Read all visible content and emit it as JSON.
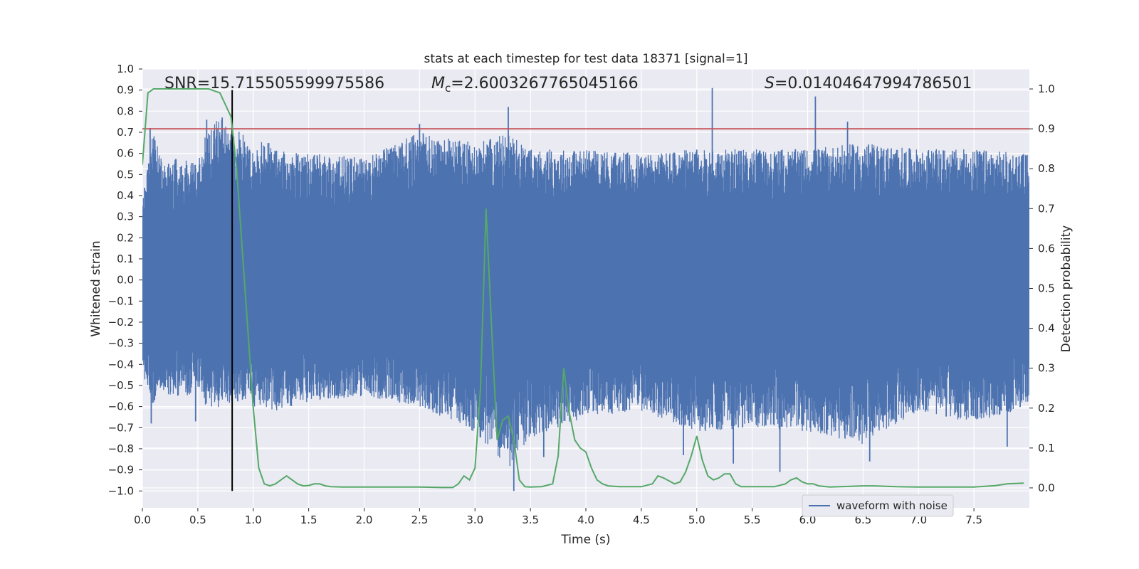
{
  "chart_data": {
    "type": "line",
    "title": "stats at each timestep for test data 18371 [signal=1]",
    "xlabel": "Time (s)",
    "ylabel_left": "Whitened strain",
    "ylabel_right": "Detection probability",
    "xlim": [
      0.0,
      8.0
    ],
    "ylim_left": [
      -1.08,
      1.0
    ],
    "ylim_right": [
      -0.05,
      1.05
    ],
    "x_ticks": [
      "0.0",
      "0.5",
      "1.0",
      "1.5",
      "2.0",
      "2.5",
      "3.0",
      "3.5",
      "4.0",
      "4.5",
      "5.0",
      "5.5",
      "6.0",
      "6.5",
      "7.0",
      "7.5"
    ],
    "x_tick_values": [
      0.0,
      0.5,
      1.0,
      1.5,
      2.0,
      2.5,
      3.0,
      3.5,
      4.0,
      4.5,
      5.0,
      5.5,
      6.0,
      6.5,
      7.0,
      7.5
    ],
    "y_left_ticks": [
      "1.0",
      "0.9",
      "0.8",
      "0.7",
      "0.6",
      "0.5",
      "0.4",
      "0.3",
      "0.2",
      "0.1",
      "0.0",
      "−0.1",
      "−0.2",
      "−0.3",
      "−0.4",
      "−0.5",
      "−0.6",
      "−0.7",
      "−0.8",
      "−0.9",
      "−1.0"
    ],
    "y_left_tick_values": [
      1.0,
      0.9,
      0.8,
      0.7,
      0.6,
      0.5,
      0.4,
      0.3,
      0.2,
      0.1,
      0.0,
      -0.1,
      -0.2,
      -0.3,
      -0.4,
      -0.5,
      -0.6,
      -0.7,
      -0.8,
      -0.9,
      -1.0
    ],
    "y_right_ticks": [
      "1.0",
      "0.9",
      "0.8",
      "0.7",
      "0.6",
      "0.5",
      "0.4",
      "0.3",
      "0.2",
      "0.1",
      "0.0"
    ],
    "y_right_tick_values": [
      1.0,
      0.9,
      0.8,
      0.7,
      0.6,
      0.5,
      0.4,
      0.3,
      0.2,
      0.1,
      0.0
    ],
    "grid": true,
    "annotations": {
      "snr_text": "SNR=15.715505599975586",
      "mc_prefix": "M",
      "mc_sub": "c",
      "mc_value": "=2.6003267765045166",
      "s_prefix": "S",
      "s_value": "=0.01404647994786501"
    },
    "legend": {
      "entries": [
        "waveform with noise"
      ],
      "placement": "lower-right"
    },
    "threshold_line": {
      "axis": "right",
      "y": 0.9,
      "color": "#c44e52"
    },
    "marker_line": {
      "axis": "left",
      "x": 0.81,
      "y_from": -1.0,
      "y_to": 0.9,
      "color": "#000000"
    },
    "waveform": {
      "name": "waveform with noise",
      "axis": "left",
      "color": "#4c72b0",
      "envelope": {
        "x": [
          0.0,
          0.05,
          0.1,
          0.15,
          0.2,
          0.3,
          0.4,
          0.5,
          0.55,
          0.6,
          0.7,
          0.8,
          0.9,
          1.0,
          1.1,
          1.2,
          1.5,
          2.0,
          2.5,
          3.0,
          3.3,
          3.5,
          4.0,
          4.5,
          5.0,
          5.5,
          6.0,
          6.5,
          7.0,
          7.5,
          8.0
        ],
        "upper": [
          0.42,
          0.55,
          0.72,
          0.6,
          0.55,
          0.58,
          0.57,
          0.55,
          0.68,
          0.72,
          0.77,
          0.72,
          0.7,
          0.6,
          0.68,
          0.62,
          0.6,
          0.58,
          0.7,
          0.65,
          0.7,
          0.62,
          0.62,
          0.6,
          0.62,
          0.62,
          0.62,
          0.65,
          0.62,
          0.62,
          0.6
        ],
        "lower": [
          -0.48,
          -0.5,
          -0.6,
          -0.5,
          -0.55,
          -0.55,
          -0.55,
          -0.52,
          -0.58,
          -0.62,
          -0.6,
          -0.58,
          -0.58,
          -0.6,
          -0.6,
          -0.62,
          -0.58,
          -0.55,
          -0.6,
          -0.72,
          -0.9,
          -0.75,
          -0.65,
          -0.62,
          -0.72,
          -0.7,
          -0.72,
          -0.78,
          -0.62,
          -0.68,
          -0.6
        ]
      },
      "spikes": [
        {
          "x": 0.07,
          "y": 0.72
        },
        {
          "x": 0.58,
          "y": 0.76
        },
        {
          "x": 0.72,
          "y": 0.77
        },
        {
          "x": 3.3,
          "y": 0.82
        },
        {
          "x": 2.5,
          "y": 0.74
        },
        {
          "x": 5.14,
          "y": 0.91
        },
        {
          "x": 6.07,
          "y": 0.87
        },
        {
          "x": 6.36,
          "y": 0.75
        },
        {
          "x": 3.35,
          "y": -1.0
        },
        {
          "x": 0.08,
          "y": -0.68
        },
        {
          "x": 0.48,
          "y": -0.67
        },
        {
          "x": 3.62,
          "y": -0.84
        },
        {
          "x": 4.88,
          "y": -0.83
        },
        {
          "x": 5.33,
          "y": -0.87
        },
        {
          "x": 5.75,
          "y": -0.91
        },
        {
          "x": 6.56,
          "y": -0.86
        },
        {
          "x": 7.8,
          "y": -0.79
        }
      ]
    },
    "detection_probability": {
      "name": "detection probability",
      "axis": "right",
      "color": "#55a868",
      "x": [
        0.0,
        0.05,
        0.1,
        0.2,
        0.3,
        0.4,
        0.5,
        0.6,
        0.7,
        0.75,
        0.8,
        0.85,
        0.9,
        0.95,
        1.0,
        1.05,
        1.1,
        1.15,
        1.2,
        1.25,
        1.3,
        1.35,
        1.4,
        1.45,
        1.5,
        1.55,
        1.6,
        1.65,
        1.7,
        1.8,
        2.0,
        2.2,
        2.5,
        2.7,
        2.8,
        2.85,
        2.9,
        2.95,
        3.0,
        3.05,
        3.1,
        3.15,
        3.2,
        3.25,
        3.3,
        3.35,
        3.4,
        3.45,
        3.5,
        3.6,
        3.7,
        3.75,
        3.8,
        3.85,
        3.9,
        3.95,
        4.0,
        4.05,
        4.1,
        4.15,
        4.2,
        4.3,
        4.5,
        4.6,
        4.65,
        4.7,
        4.8,
        4.85,
        4.9,
        4.95,
        5.0,
        5.05,
        5.1,
        5.15,
        5.2,
        5.25,
        5.3,
        5.35,
        5.4,
        5.5,
        5.7,
        5.8,
        5.85,
        5.9,
        5.95,
        6.0,
        6.05,
        6.1,
        6.2,
        6.3,
        6.5,
        6.6,
        6.8,
        7.0,
        7.3,
        7.5,
        7.6,
        7.7,
        7.8,
        7.95
      ],
      "y": [
        0.81,
        0.99,
        1.0,
        1.0,
        1.0,
        1.0,
        1.0,
        1.0,
        0.99,
        0.96,
        0.93,
        0.8,
        0.6,
        0.4,
        0.2,
        0.05,
        0.01,
        0.005,
        0.01,
        0.02,
        0.03,
        0.02,
        0.01,
        0.005,
        0.006,
        0.01,
        0.01,
        0.005,
        0.003,
        0.002,
        0.002,
        0.002,
        0.002,
        0.001,
        0.001,
        0.01,
        0.03,
        0.02,
        0.05,
        0.25,
        0.7,
        0.4,
        0.12,
        0.17,
        0.18,
        0.12,
        0.02,
        0.003,
        0.002,
        0.003,
        0.01,
        0.08,
        0.3,
        0.19,
        0.12,
        0.1,
        0.09,
        0.05,
        0.02,
        0.01,
        0.005,
        0.003,
        0.003,
        0.01,
        0.03,
        0.025,
        0.01,
        0.015,
        0.04,
        0.08,
        0.13,
        0.07,
        0.03,
        0.02,
        0.025,
        0.035,
        0.035,
        0.01,
        0.003,
        0.003,
        0.003,
        0.01,
        0.02,
        0.025,
        0.015,
        0.01,
        0.01,
        0.005,
        0.002,
        0.003,
        0.005,
        0.005,
        0.003,
        0.002,
        0.002,
        0.002,
        0.004,
        0.006,
        0.01,
        0.012
      ]
    }
  }
}
